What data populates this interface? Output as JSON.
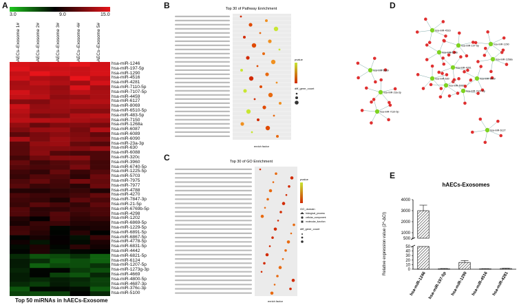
{
  "panels": {
    "a": "A",
    "b": "B",
    "c": "C",
    "d": "D",
    "e": "E"
  },
  "heatmap": {
    "scale_labels": [
      "3.0",
      "9.0",
      "15.0"
    ],
    "samples": [
      "hAECs–Exosome 1#",
      "hAECs–Exosome 2#",
      "hAECs–Exosome 3#",
      "hAECs–Exosome 4#",
      "hAECs–Exosome 5#"
    ],
    "mirnas": [
      "hsa-miR-1246",
      "hsa-miR-197-5p",
      "hsa-miR-1290",
      "hsa-miR-4516",
      "hsa-miR-4281",
      "hsa-miR-7110-5p",
      "hsa-miR-7107-5p",
      "hsa-miR-4459",
      "hsa-miR-6127",
      "hsa-miR-8069",
      "hsa-miR-6510-5p",
      "hsa-miR-483-5p",
      "hsa-miR-7150",
      "hsa-miR-1268a",
      "hsa-miR-6087",
      "hsa-miR-6089",
      "hsa-miR-6090",
      "hsa-miR-23a-3p",
      "hsa-miR-630",
      "hsa-miR-6088",
      "hsa-miR-320c",
      "hsa-miR-3960",
      "hsa-miR-6740-5p",
      "hsa-miR-1225-5p",
      "hsa-miR-5703",
      "hsa-miR-7975",
      "hsa-miR-7977",
      "hsa-miR-4788",
      "hsa-miR-4270",
      "hsa-miR-7847-3p",
      "hsa-miR-21-5p",
      "hsa-miR-6769b-5p",
      "hsa-miR-4298",
      "hsa-miR-1202",
      "hsa-miR-6869-5p",
      "hsa-miR-1229-5p",
      "hsa-miR-6891-5p",
      "hsa-miR-6867-5p",
      "hsa-miR-4778-5p",
      "hsa-miR-6831-5p",
      "hsa-miR-4442",
      "hsa-miR-6821-5p",
      "hsa-miR-6124",
      "hsa-miR-1207-5p",
      "hsa-miR-1273g-3p",
      "hsa-miR-4669",
      "hsa-miR-4800-5p",
      "hsa-miR-4687-3p",
      "hsa-miR-376c-3p",
      "hsa-miR-5100"
    ],
    "caption": "Top 50 miRNAs in hAECs-Exosome"
  },
  "pathway": {
    "title": "Top 30 of Pathway Enrichment",
    "xlabel": "enrich factor",
    "legend_pvalue": "pvalue",
    "legend_count": "diff_gene_count"
  },
  "go": {
    "title": "Top 30 of GO Enrichment",
    "xlabel": "enrich factor",
    "legend_pvalue": "pvalue",
    "legend_domain": "GO_domain",
    "domains": [
      "biological_process",
      "cellular_component",
      "molecular_function"
    ],
    "legend_count": "diff_gene_count"
  },
  "network": {
    "mirna_nodes": [
      "hsa-miR-1246",
      "hsa-miR-197-5p",
      "hsa-miR-1290",
      "hsa-miR-4516",
      "hsa-miR-4281",
      "hsa-miR-6089",
      "hsa-miR-23a-3p",
      "hsa-miR-7110-5p",
      "hsa-miR-6127",
      "hsa-miR-7107-5p",
      "hsa-miR-8069",
      "hsa-miR-630",
      "hsa-miR-6087",
      "hsa-miR-1268a"
    ]
  },
  "chart_data": {
    "type": "bar",
    "title": "hAECs-Exosomes",
    "ylabel": "Relative expression value (2^-ΔCt)",
    "categories": [
      "hsa-miR-1246",
      "hsa-miR-197-5p",
      "hsa-miR-1290",
      "hsa-miR-4516",
      "hsa-miR-4281"
    ],
    "values": [
      3000,
      1,
      15,
      1,
      1.5
    ],
    "errors": [
      500,
      0.5,
      4,
      0.3,
      0.5
    ],
    "ylim_lower": [
      0,
      50
    ],
    "ylim_upper": [
      500,
      4000
    ],
    "yticks_lower": [
      "0",
      "10",
      "20",
      "30",
      "40",
      "50"
    ],
    "yticks_upper": [
      "500",
      "1000",
      "2000",
      "3000",
      "4000"
    ]
  },
  "colors": {
    "low": "#1ec81e",
    "mid": "#000000",
    "high": "#e8141a"
  }
}
